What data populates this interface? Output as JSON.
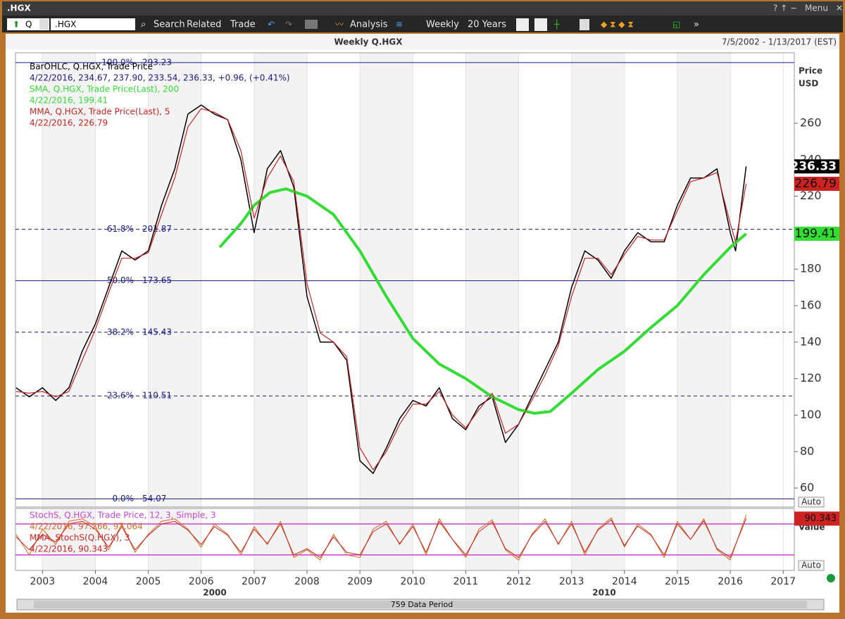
{
  "window": {
    "title": ".HGX",
    "menu": "Menu"
  },
  "toolbar": {
    "symbol_prefix": "Q",
    "symbol": ".HGX",
    "search": "Search",
    "related": "Related",
    "trade": "Trade",
    "analysis": "Analysis",
    "interval": "Weekly",
    "range": "20 Years"
  },
  "chart_header": {
    "title": "Weekly Q.HGX",
    "date_range": "7/5/2002 - 1/13/2017 (EST)"
  },
  "footer": {
    "eras": [
      "2000",
      "2010"
    ],
    "data_period": "759 Data Period"
  },
  "chart_data": [
    {
      "type": "line",
      "y_axis_title": [
        "Price",
        "USD"
      ],
      "scale_mode": "Auto",
      "xlim": [
        2002.49,
        2017.21
      ],
      "xticks": [
        2003,
        2004,
        2005,
        2006,
        2007,
        2008,
        2009,
        2010,
        2011,
        2012,
        2013,
        2014,
        2015,
        2016,
        2017
      ],
      "ylim": [
        49.6,
        298.6
      ],
      "yticks": [
        60,
        80,
        100,
        120,
        140,
        160,
        180,
        200,
        220,
        240,
        260
      ],
      "grid": true,
      "level_color": "#1a1a80",
      "levels": [
        {
          "label": "100.0%",
          "value": 293.23,
          "dashed": false
        },
        {
          "label": "61.8%",
          "value": 201.87,
          "dashed": true
        },
        {
          "label": "50.0%",
          "value": 173.65,
          "dashed": false
        },
        {
          "label": "38.2%",
          "value": 145.43,
          "dashed": true
        },
        {
          "label": "23.6%",
          "value": 110.51,
          "dashed": true
        },
        {
          "label": "0.0%",
          "value": 54.07,
          "dashed": false
        }
      ],
      "series": [
        {
          "name": "BarOHLC, Q.HGX, Trade Price",
          "info": "4/22/2016, 234.67, 237.90, 233.54, 236.33, +0.96, (+0.41%)",
          "color": "#000000",
          "width": 1.5,
          "x": [
            2002.5,
            2002.75,
            2003,
            2003.25,
            2003.5,
            2003.75,
            2004,
            2004.25,
            2004.5,
            2004.75,
            2005,
            2005.25,
            2005.5,
            2005.75,
            2006,
            2006.25,
            2006.5,
            2006.75,
            2007,
            2007.25,
            2007.5,
            2007.75,
            2008,
            2008.25,
            2008.5,
            2008.75,
            2009,
            2009.25,
            2009.5,
            2009.75,
            2010,
            2010.25,
            2010.5,
            2010.75,
            2011,
            2011.25,
            2011.5,
            2011.75,
            2012,
            2012.25,
            2012.5,
            2012.75,
            2013,
            2013.25,
            2013.5,
            2013.75,
            2014,
            2014.25,
            2014.5,
            2014.75,
            2015,
            2015.25,
            2015.5,
            2015.75,
            2016,
            2016.1,
            2016.3
          ],
          "values": [
            115,
            110,
            115,
            108,
            115,
            135,
            150,
            170,
            190,
            185,
            190,
            215,
            235,
            265,
            270,
            265,
            262,
            240,
            200,
            235,
            245,
            225,
            165,
            140,
            140,
            130,
            75,
            68,
            82,
            98,
            108,
            105,
            115,
            98,
            92,
            105,
            110,
            85,
            95,
            110,
            125,
            140,
            170,
            190,
            185,
            175,
            190,
            200,
            195,
            195,
            215,
            230,
            230,
            235,
            200,
            190,
            236.33
          ]
        },
        {
          "name": "SMA, Q.HGX, Trade Price(Last),  200",
          "info": "4/22/2016, 199.41",
          "color": "#33dd33",
          "width": 4,
          "x": [
            2006.35,
            2006.75,
            2007,
            2007.3,
            2007.6,
            2008,
            2008.5,
            2009,
            2009.5,
            2010,
            2010.5,
            2011,
            2011.5,
            2012,
            2012.3,
            2012.6,
            2013,
            2013.5,
            2014,
            2014.5,
            2015,
            2015.5,
            2016,
            2016.3
          ],
          "values": [
            192,
            205,
            215,
            222,
            224,
            220,
            210,
            190,
            165,
            142,
            128,
            120,
            110,
            103,
            101,
            102,
            112,
            125,
            135,
            148,
            160,
            177,
            192,
            199.41
          ]
        },
        {
          "name": "MMA, Q.HGX, Trade Price(Last),  5",
          "info": "4/22/2016, 226.79",
          "color": "#cc2222",
          "width": 1.2,
          "x": [
            2002.5,
            2002.75,
            2003,
            2003.25,
            2003.5,
            2003.75,
            2004,
            2004.25,
            2004.5,
            2004.75,
            2005,
            2005.25,
            2005.5,
            2005.75,
            2006,
            2006.25,
            2006.5,
            2006.75,
            2007,
            2007.25,
            2007.5,
            2007.75,
            2008,
            2008.25,
            2008.5,
            2008.75,
            2009,
            2009.25,
            2009.5,
            2009.75,
            2010,
            2010.25,
            2010.5,
            2010.75,
            2011,
            2011.25,
            2011.5,
            2011.75,
            2012,
            2012.25,
            2012.5,
            2012.75,
            2013,
            2013.25,
            2013.5,
            2013.75,
            2014,
            2014.25,
            2014.5,
            2014.75,
            2015,
            2015.25,
            2015.5,
            2015.75,
            2016,
            2016.1,
            2016.3
          ],
          "values": [
            113,
            112,
            113,
            110,
            113,
            130,
            147,
            167,
            186,
            186,
            189,
            210,
            230,
            258,
            268,
            266,
            262,
            245,
            208,
            230,
            242,
            228,
            172,
            145,
            140,
            132,
            82,
            70,
            80,
            95,
            106,
            106,
            113,
            100,
            93,
            103,
            112,
            90,
            95,
            108,
            122,
            138,
            165,
            186,
            186,
            177,
            188,
            198,
            196,
            196,
            212,
            228,
            230,
            233,
            205,
            195,
            226.79
          ]
        }
      ]
    },
    {
      "type": "line",
      "y_axis_title": [
        "Value"
      ],
      "scale_mode": "Auto",
      "xlim": [
        2002.49,
        2017.21
      ],
      "ylim": [
        -10,
        110
      ],
      "bands": [
        20,
        80
      ],
      "band_color": "#cc44cc",
      "series": [
        {
          "name": "StochS, Q.HGX, Trade Price,  12, 3, Simple, 3",
          "info": "4/22/2016, 97.266, 97.064",
          "color": "#d2691e",
          "width": 1,
          "x": [
            2002.5,
            2002.75,
            2003,
            2003.25,
            2003.5,
            2003.75,
            2004,
            2004.25,
            2004.5,
            2004.75,
            2005,
            2005.25,
            2005.5,
            2005.75,
            2006,
            2006.25,
            2006.5,
            2006.75,
            2007,
            2007.25,
            2007.5,
            2007.75,
            2008,
            2008.25,
            2008.5,
            2008.75,
            2009,
            2009.25,
            2009.5,
            2009.75,
            2010,
            2010.25,
            2010.5,
            2010.75,
            2011,
            2011.25,
            2011.5,
            2011.75,
            2012,
            2012.25,
            2012.5,
            2012.75,
            2013,
            2013.25,
            2013.5,
            2013.75,
            2014,
            2014.25,
            2014.5,
            2014.75,
            2015,
            2015.25,
            2015.5,
            2015.75,
            2016,
            2016.3
          ],
          "values": [
            60,
            20,
            70,
            40,
            85,
            90,
            75,
            30,
            80,
            25,
            60,
            85,
            90,
            70,
            35,
            80,
            60,
            20,
            75,
            40,
            85,
            15,
            30,
            10,
            60,
            20,
            15,
            70,
            85,
            40,
            80,
            20,
            90,
            50,
            15,
            70,
            88,
            30,
            10,
            60,
            90,
            40,
            85,
            20,
            70,
            92,
            35,
            80,
            60,
            15,
            85,
            50,
            90,
            30,
            10,
            97.266
          ]
        },
        {
          "name": "MMA, StochS(Q.HGX),  3",
          "info": "4/22/2016, 90.343",
          "color": "#cc2222",
          "width": 1,
          "x": [
            2002.5,
            2002.75,
            2003,
            2003.25,
            2003.5,
            2003.75,
            2004,
            2004.25,
            2004.5,
            2004.75,
            2005,
            2005.25,
            2005.5,
            2005.75,
            2006,
            2006.25,
            2006.5,
            2006.75,
            2007,
            2007.25,
            2007.5,
            2007.75,
            2008,
            2008.25,
            2008.5,
            2008.75,
            2009,
            2009.25,
            2009.5,
            2009.75,
            2010,
            2010.25,
            2010.5,
            2010.75,
            2011,
            2011.25,
            2011.5,
            2011.75,
            2012,
            2012.25,
            2012.5,
            2012.75,
            2013,
            2013.25,
            2013.5,
            2013.75,
            2014,
            2014.25,
            2014.5,
            2014.75,
            2015,
            2015.25,
            2015.5,
            2015.75,
            2016,
            2016.3
          ],
          "values": [
            55,
            30,
            60,
            45,
            80,
            85,
            70,
            35,
            75,
            30,
            58,
            80,
            85,
            68,
            40,
            75,
            58,
            25,
            70,
            42,
            80,
            20,
            32,
            15,
            55,
            25,
            20,
            65,
            80,
            42,
            75,
            25,
            85,
            50,
            20,
            65,
            84,
            32,
            15,
            58,
            85,
            42,
            80,
            25,
            68,
            88,
            38,
            76,
            58,
            20,
            80,
            50,
            86,
            32,
            15,
            90.343
          ]
        }
      ]
    }
  ]
}
